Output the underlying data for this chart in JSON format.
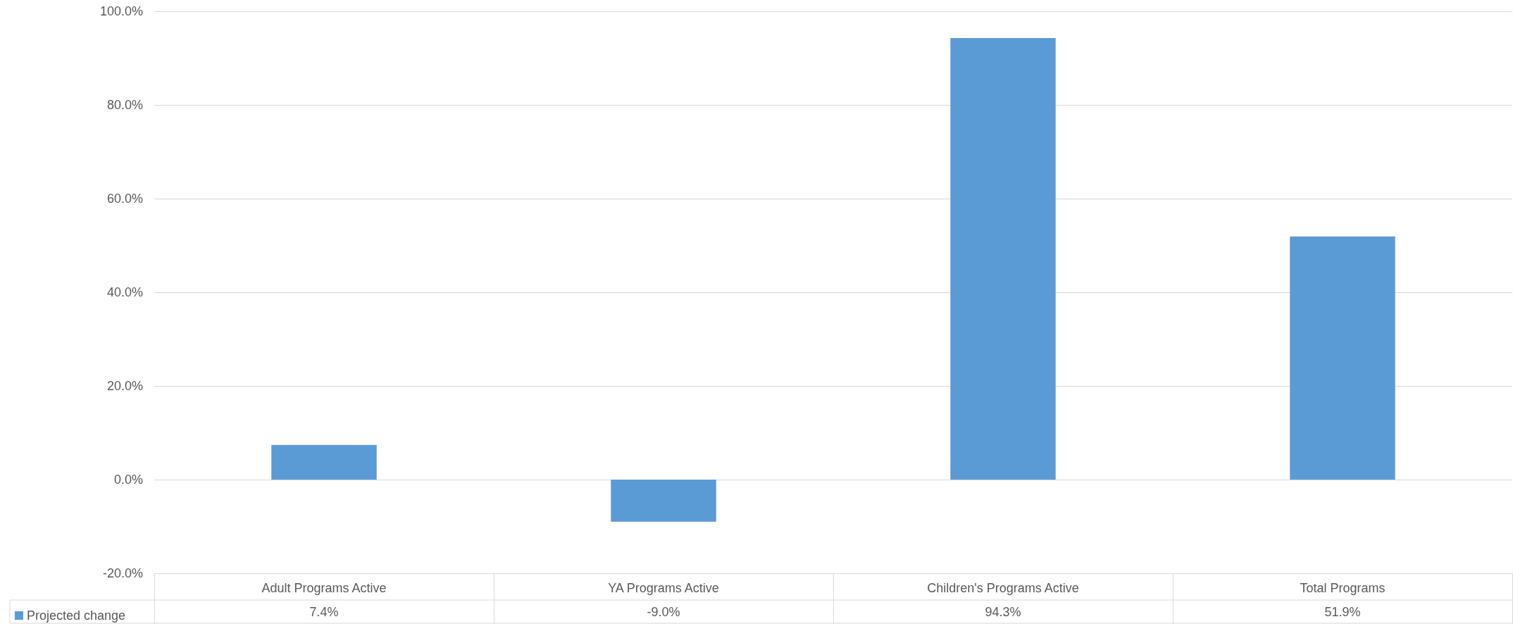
{
  "chart_data": {
    "type": "bar",
    "categories": [
      "Adult Programs Active",
      "YA Programs Active",
      "Children's Programs Active",
      "Total Programs"
    ],
    "series": [
      {
        "name": "Projected change",
        "color": "#5b9bd5",
        "values": [
          7.4,
          -9.0,
          94.3,
          51.9
        ],
        "value_labels": [
          "7.4%",
          "-9.0%",
          "94.3%",
          "51.9%"
        ]
      }
    ],
    "ylim": [
      -20,
      100
    ],
    "yticks": [
      {
        "value": -20,
        "label": "-20.0%"
      },
      {
        "value": 0,
        "label": "0.0%"
      },
      {
        "value": 20,
        "label": "20.0%"
      },
      {
        "value": 40,
        "label": "40.0%"
      },
      {
        "value": 60,
        "label": "60.0%"
      },
      {
        "value": 80,
        "label": "80.0%"
      },
      {
        "value": 100,
        "label": "100.0%"
      }
    ],
    "grid": "y",
    "legend": "bottom left"
  }
}
